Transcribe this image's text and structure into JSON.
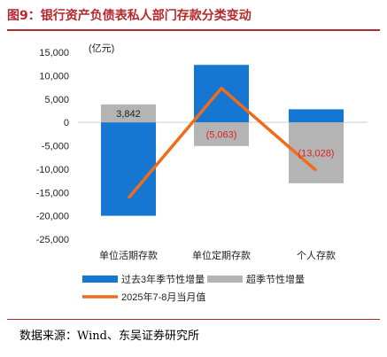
{
  "title": "图9：银行资产负债表私人部门存款分类变动",
  "source": "数据来源：Wind、东吴证券研究所",
  "chart_data": {
    "type": "bar",
    "unit_label": "(亿元)",
    "categories": [
      "单位活期存款",
      "单位定期存款",
      "个人存款"
    ],
    "series": [
      {
        "name": "过去3年季节性增量",
        "kind": "bar",
        "color": "#1677d2",
        "values": [
          -20000,
          12300,
          2800
        ]
      },
      {
        "name": "超季节性增量",
        "kind": "bar",
        "color": "#b4b4b4",
        "values": [
          3842,
          -5063,
          -13028
        ]
      },
      {
        "name": "2025年7-8月当月值",
        "kind": "line",
        "color": "#ef6c1a",
        "values": [
          -16200,
          7300,
          -10300
        ]
      }
    ],
    "data_labels": [
      {
        "category": "单位活期存款",
        "text": "3,842",
        "color": "#222222"
      },
      {
        "category": "单位定期存款",
        "text": "(5,063)",
        "color": "#e01f1f"
      },
      {
        "category": "个人存款",
        "text": "(13,028)",
        "color": "#e01f1f"
      }
    ],
    "yticks": [
      15000,
      10000,
      5000,
      0,
      -5000,
      -10000,
      -15000,
      -20000,
      -25000
    ],
    "ytick_labels": [
      "15,000",
      "10,000",
      "5,000",
      "0",
      "-5,000",
      "-10,000",
      "-15,000",
      "-20,000",
      "-25,000"
    ],
    "ylim": [
      -25000,
      15000
    ],
    "grid": false,
    "legend_position": "bottom"
  }
}
